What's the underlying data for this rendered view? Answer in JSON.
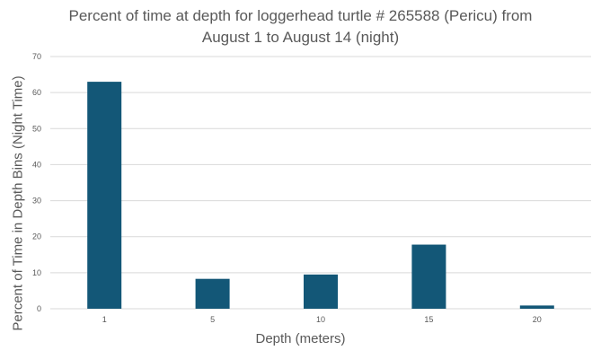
{
  "chart_data": {
    "type": "bar",
    "title_lines": [
      "Percent of time at depth for loggerhead turtle # 265588 (Pericu) from",
      "August 1 to August 14 (night)"
    ],
    "xlabel": "Depth (meters)",
    "ylabel": "Percent of Time in Depth Bins (Night Time)",
    "categories": [
      "1",
      "5",
      "10",
      "15",
      "20"
    ],
    "values": [
      63,
      8.3,
      9.5,
      17.8,
      0.9
    ],
    "ylim": [
      0,
      70
    ],
    "yticks": [
      0,
      10,
      20,
      30,
      40,
      50,
      60,
      70
    ],
    "grid": true,
    "bar_color": "#135777",
    "grid_color": "#d9d9d9"
  }
}
